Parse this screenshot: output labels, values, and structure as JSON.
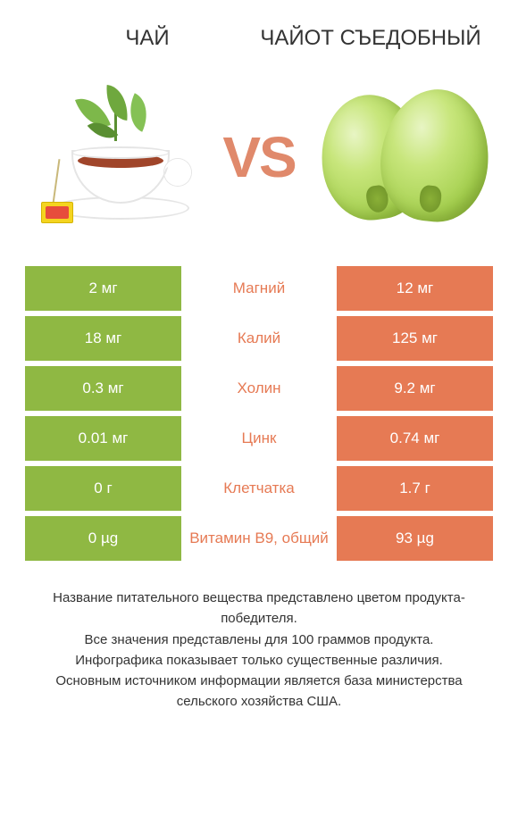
{
  "colors": {
    "green": "#8fb843",
    "orange": "#e67a54",
    "mid_orange": "#e67a54",
    "mid_green": "#8fb843",
    "text": "#333333",
    "vs": "#e0896b"
  },
  "title_left": "ЧАЙ",
  "title_right": "ЧАЙОТ СЪЕДОБНЫЙ",
  "vs_label": "VS",
  "rows": [
    {
      "left": "2 мг",
      "mid": "Магний",
      "right": "12 мг",
      "mid_color": "orange"
    },
    {
      "left": "18 мг",
      "mid": "Калий",
      "right": "125 мг",
      "mid_color": "orange"
    },
    {
      "left": "0.3 мг",
      "mid": "Холин",
      "right": "9.2 мг",
      "mid_color": "orange"
    },
    {
      "left": "0.01 мг",
      "mid": "Цинк",
      "right": "0.74 мг",
      "mid_color": "orange"
    },
    {
      "left": "0 г",
      "mid": "Клетчатка",
      "right": "1.7 г",
      "mid_color": "orange"
    },
    {
      "left": "0 µg",
      "mid": "Витамин B9, общий",
      "right": "93 µg",
      "mid_color": "orange"
    }
  ],
  "footer_lines": [
    "Название питательного вещества представлено цветом продукта-победителя.",
    "Все значения представлены для 100 граммов продукта.",
    "Инфографика показывает только существенные различия.",
    "Основным источником информации является база министерства сельского хозяйства США."
  ]
}
